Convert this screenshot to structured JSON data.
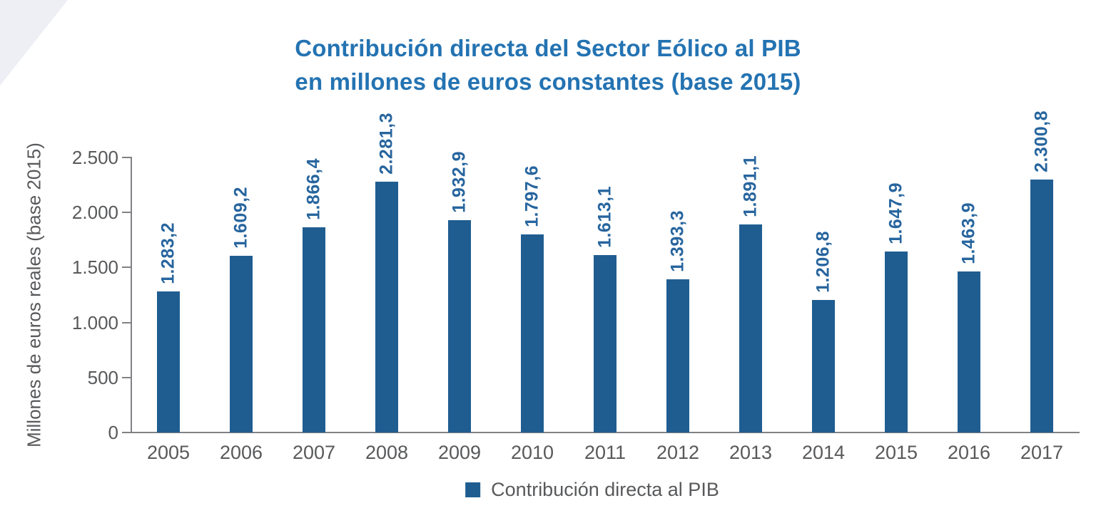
{
  "page": {
    "background_color": "#ffffff",
    "corner_decoration_color": "#edeff5"
  },
  "chart_data": {
    "type": "bar",
    "title_line1": "Contribución directa del Sector Eólico al PIB",
    "title_line2": "en millones de euros constantes (base 2015)",
    "ylabel": "Millones de euros reales (base 2015)",
    "xlabel": "",
    "categories": [
      "2005",
      "2006",
      "2007",
      "2008",
      "2009",
      "2010",
      "2011",
      "2012",
      "2013",
      "2014",
      "2015",
      "2016",
      "2017"
    ],
    "series": [
      {
        "name": "Contribución directa al PIB",
        "values": [
          1283.2,
          1609.2,
          1866.4,
          2281.3,
          1932.9,
          1797.6,
          1613.1,
          1393.3,
          1891.1,
          1206.8,
          1647.9,
          1463.9,
          2300.8
        ],
        "value_labels": [
          "1.283,2",
          "1.609,2",
          "1.866,4",
          "2.281,3",
          "1.932,9",
          "1.797,6",
          "1.613,1",
          "1.393,3",
          "1.891,1",
          "1.206,8",
          "1.647,9",
          "1.463,9",
          "2.300,8"
        ]
      }
    ],
    "ylim": [
      0,
      2500
    ],
    "y_ticks": [
      {
        "value": 2500,
        "label": "2.500"
      },
      {
        "value": 2000,
        "label": "2.000"
      },
      {
        "value": 1500,
        "label": "1.500"
      },
      {
        "value": 1000,
        "label": "1.000"
      },
      {
        "value": 500,
        "label": "500"
      },
      {
        "value": 0,
        "label": "0"
      }
    ],
    "grid": false,
    "legend": {
      "label": "Contribución directa al PIB",
      "position": "bottom"
    },
    "colors": {
      "bar": "#1f5d91",
      "value_label": "#27659e",
      "title": "#2473b2",
      "axis_text": "#58595b",
      "axis_line": "#808285"
    }
  }
}
